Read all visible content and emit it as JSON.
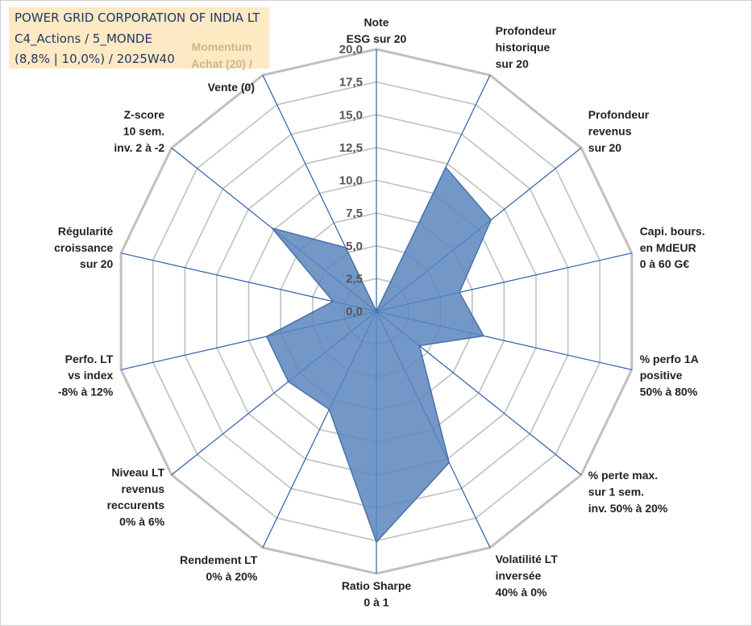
{
  "info_box": {
    "line1": "POWER GRID CORPORATION OF INDIA LT",
    "line2": "C4_Actions / 5_MONDE",
    "line3": "(8,8% | 10,0%) / 2025W40",
    "momentum_line1": "Momentum",
    "momentum_line2": "Achat (20) /"
  },
  "colors": {
    "fill": "#5b86bd",
    "grid": "#c0c0c0",
    "spoke": "#2e5ea8",
    "info_bg": "#fde9c3"
  },
  "chart_data": {
    "type": "radar",
    "rmax": 20,
    "tick_step": 2.5,
    "tick_labels": [
      "0,0",
      "2,5",
      "5,0",
      "7,5",
      "10,0",
      "12,5",
      "15,0",
      "17,5",
      "20,0"
    ],
    "axes": [
      {
        "label": [
          "Note",
          "ESG sur 20"
        ],
        "value": 0
      },
      {
        "label": [
          "Profondeur",
          "historique",
          "sur 20"
        ],
        "value": 12.2
      },
      {
        "label": [
          "Profondeur",
          "revenus",
          "sur 20"
        ],
        "value": 11.2
      },
      {
        "label": [
          "Capi. bours.",
          "en MdEUR",
          "0 à 60 G€"
        ],
        "value": 6.5
      },
      {
        "label": [
          "% perfo 1A",
          "positive",
          "50% à 80%"
        ],
        "value": 8.4
      },
      {
        "label": [
          "% perte max.",
          "sur 1 sem.",
          "inv. 50% à 20%"
        ],
        "value": 4.2
      },
      {
        "label": [
          "Volatilité LT",
          "inversée",
          "40% à 0%"
        ],
        "value": 12.8
      },
      {
        "label": [
          "Ratio Sharpe",
          "0 à 1"
        ],
        "value": 17.6
      },
      {
        "label": [
          "Rendement LT",
          "0% à 20%"
        ],
        "value": 8.3
      },
      {
        "label": [
          "Niveau LT",
          "revenus",
          "reccurents",
          "0% à 6%"
        ],
        "value": 8.6
      },
      {
        "label": [
          "Perfo. LT",
          "vs index",
          "-8% à 12%"
        ],
        "value": 8.6
      },
      {
        "label": [
          "Régularité",
          "croissance",
          "sur 20"
        ],
        "value": 3.4
      },
      {
        "label": [
          "Z-score",
          "10 sem.",
          "inv. 2 à -2"
        ],
        "value": 10.2
      },
      {
        "label": [
          "Vente (0)"
        ],
        "value": 5.4
      }
    ]
  }
}
